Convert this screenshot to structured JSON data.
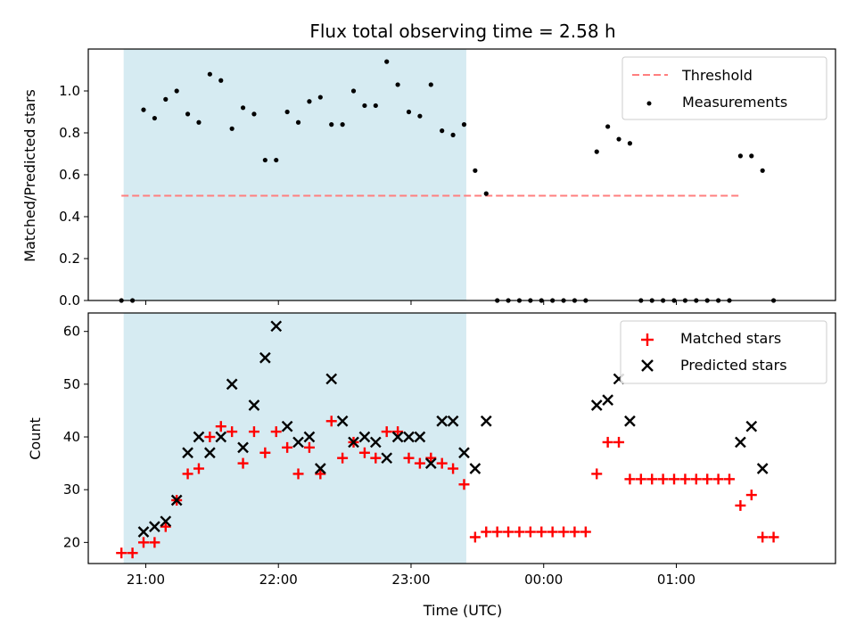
{
  "figure": {
    "title": "Flux total observing time = 2.58 h"
  },
  "chart_data": [
    {
      "type": "scatter",
      "ylabel": "Matched/Predicted stars",
      "xlabel": "",
      "xlim": [
        "20:34",
        "02:12"
      ],
      "ylim": [
        0,
        1.2
      ],
      "yticks": [
        0.0,
        0.2,
        0.4,
        0.6,
        0.8,
        1.0
      ],
      "ytick_labels": [
        "0.0",
        "0.2",
        "0.4",
        "0.6",
        "0.8",
        "1.0"
      ],
      "xticks": [
        "21:00",
        "22:00",
        "23:00",
        "00:00",
        "01:00"
      ],
      "xtick_labels_shown": false,
      "shaded_interval": {
        "start": "20:50",
        "end": "23:25",
        "color": "#add8e6"
      },
      "threshold": {
        "name": "Threshold",
        "value": 0.5,
        "x_start": "20:49",
        "x_end": "01:29",
        "color": "#ff7f7f",
        "style": "dashed"
      },
      "series": [
        {
          "name": "Measurements",
          "color": "#000000",
          "marker": "dot",
          "points": [
            [
              "20:49",
              0
            ],
            [
              "20:54",
              0
            ],
            [
              "20:59",
              0.91
            ],
            [
              "21:04",
              0.87
            ],
            [
              "21:09",
              0.96
            ],
            [
              "21:14",
              1.0
            ],
            [
              "21:19",
              0.89
            ],
            [
              "21:24",
              0.85
            ],
            [
              "21:29",
              1.08
            ],
            [
              "21:34",
              1.05
            ],
            [
              "21:39",
              0.82
            ],
            [
              "21:44",
              0.92
            ],
            [
              "21:49",
              0.89
            ],
            [
              "21:54",
              0.67
            ],
            [
              "21:59",
              0.67
            ],
            [
              "22:04",
              0.9
            ],
            [
              "22:09",
              0.85
            ],
            [
              "22:14",
              0.95
            ],
            [
              "22:19",
              0.97
            ],
            [
              "22:24",
              0.84
            ],
            [
              "22:29",
              0.84
            ],
            [
              "22:34",
              1.0
            ],
            [
              "22:39",
              0.93
            ],
            [
              "22:44",
              0.93
            ],
            [
              "22:49",
              1.14
            ],
            [
              "22:54",
              1.03
            ],
            [
              "22:59",
              0.9
            ],
            [
              "23:04",
              0.88
            ],
            [
              "23:09",
              1.03
            ],
            [
              "23:14",
              0.81
            ],
            [
              "23:19",
              0.79
            ],
            [
              "23:24",
              0.84
            ],
            [
              "23:29",
              0.62
            ],
            [
              "23:34",
              0.51
            ],
            [
              "23:39",
              0
            ],
            [
              "23:44",
              0
            ],
            [
              "23:49",
              0
            ],
            [
              "23:54",
              0
            ],
            [
              "23:59",
              0
            ],
            [
              "00:04",
              0
            ],
            [
              "00:09",
              0
            ],
            [
              "00:14",
              0
            ],
            [
              "00:19",
              0
            ],
            [
              "00:24",
              0.71
            ],
            [
              "00:29",
              0.83
            ],
            [
              "00:34",
              0.77
            ],
            [
              "00:39",
              0.75
            ],
            [
              "00:44",
              0
            ],
            [
              "00:49",
              0
            ],
            [
              "00:54",
              0
            ],
            [
              "00:59",
              0
            ],
            [
              "01:04",
              0
            ],
            [
              "01:09",
              0
            ],
            [
              "01:14",
              0
            ],
            [
              "01:19",
              0
            ],
            [
              "01:24",
              0
            ],
            [
              "01:29",
              0.69
            ],
            [
              "01:34",
              0.69
            ],
            [
              "01:39",
              0.62
            ],
            [
              "01:44",
              0
            ]
          ]
        }
      ],
      "legend": {
        "placement": "top-right",
        "entries": [
          "Threshold",
          "Measurements"
        ]
      }
    },
    {
      "type": "scatter",
      "ylabel": "Count",
      "xlabel": "Time (UTC)",
      "xlim": [
        "20:34",
        "02:12"
      ],
      "ylim": [
        16,
        63.5
      ],
      "yticks": [
        20,
        30,
        40,
        50,
        60
      ],
      "ytick_labels": [
        "20",
        "30",
        "40",
        "50",
        "60"
      ],
      "xticks": [
        "21:00",
        "22:00",
        "23:00",
        "00:00",
        "01:00"
      ],
      "xtick_labels": [
        "21:00",
        "22:00",
        "23:00",
        "00:00",
        "01:00"
      ],
      "shaded_interval": {
        "start": "20:50",
        "end": "23:25",
        "color": "#add8e6"
      },
      "series": [
        {
          "name": "Matched stars",
          "color": "#ff0000",
          "marker": "plus",
          "points": [
            [
              "20:49",
              18
            ],
            [
              "20:54",
              18
            ],
            [
              "20:59",
              20
            ],
            [
              "21:04",
              20
            ],
            [
              "21:09",
              23
            ],
            [
              "21:14",
              28
            ],
            [
              "21:19",
              33
            ],
            [
              "21:24",
              34
            ],
            [
              "21:29",
              40
            ],
            [
              "21:34",
              42
            ],
            [
              "21:39",
              41
            ],
            [
              "21:44",
              35
            ],
            [
              "21:49",
              41
            ],
            [
              "21:54",
              37
            ],
            [
              "21:59",
              41
            ],
            [
              "22:04",
              38
            ],
            [
              "22:09",
              33
            ],
            [
              "22:14",
              38
            ],
            [
              "22:19",
              33
            ],
            [
              "22:24",
              43
            ],
            [
              "22:29",
              36
            ],
            [
              "22:34",
              39
            ],
            [
              "22:39",
              37
            ],
            [
              "22:44",
              36
            ],
            [
              "22:49",
              41
            ],
            [
              "22:54",
              41
            ],
            [
              "22:59",
              36
            ],
            [
              "23:04",
              35
            ],
            [
              "23:09",
              36
            ],
            [
              "23:14",
              35
            ],
            [
              "23:19",
              34
            ],
            [
              "23:24",
              31
            ],
            [
              "23:29",
              21
            ],
            [
              "23:34",
              22
            ],
            [
              "23:39",
              22
            ],
            [
              "23:44",
              22
            ],
            [
              "23:49",
              22
            ],
            [
              "23:54",
              22
            ],
            [
              "23:59",
              22
            ],
            [
              "00:04",
              22
            ],
            [
              "00:09",
              22
            ],
            [
              "00:14",
              22
            ],
            [
              "00:19",
              22
            ],
            [
              "00:24",
              33
            ],
            [
              "00:29",
              39
            ],
            [
              "00:34",
              39
            ],
            [
              "00:39",
              32
            ],
            [
              "00:44",
              32
            ],
            [
              "00:49",
              32
            ],
            [
              "00:54",
              32
            ],
            [
              "00:59",
              32
            ],
            [
              "01:04",
              32
            ],
            [
              "01:09",
              32
            ],
            [
              "01:14",
              32
            ],
            [
              "01:19",
              32
            ],
            [
              "01:24",
              32
            ],
            [
              "01:29",
              27
            ],
            [
              "01:34",
              29
            ],
            [
              "01:39",
              21
            ],
            [
              "01:44",
              21
            ]
          ]
        },
        {
          "name": "Predicted stars",
          "color": "#000000",
          "marker": "x",
          "points": [
            [
              "20:59",
              22
            ],
            [
              "21:04",
              23
            ],
            [
              "21:09",
              24
            ],
            [
              "21:14",
              28
            ],
            [
              "21:19",
              37
            ],
            [
              "21:24",
              40
            ],
            [
              "21:29",
              37
            ],
            [
              "21:34",
              40
            ],
            [
              "21:39",
              50
            ],
            [
              "21:44",
              38
            ],
            [
              "21:49",
              46
            ],
            [
              "21:54",
              55
            ],
            [
              "21:59",
              61
            ],
            [
              "22:04",
              42
            ],
            [
              "22:09",
              39
            ],
            [
              "22:14",
              40
            ],
            [
              "22:19",
              34
            ],
            [
              "22:24",
              51
            ],
            [
              "22:29",
              43
            ],
            [
              "22:34",
              39
            ],
            [
              "22:39",
              40
            ],
            [
              "22:44",
              39
            ],
            [
              "22:49",
              36
            ],
            [
              "22:54",
              40
            ],
            [
              "22:59",
              40
            ],
            [
              "23:04",
              40
            ],
            [
              "23:09",
              35
            ],
            [
              "23:14",
              43
            ],
            [
              "23:19",
              43
            ],
            [
              "23:24",
              37
            ],
            [
              "23:29",
              34
            ],
            [
              "23:34",
              43
            ],
            [
              "00:24",
              46
            ],
            [
              "00:29",
              47
            ],
            [
              "00:34",
              51
            ],
            [
              "00:39",
              43
            ],
            [
              "01:29",
              39
            ],
            [
              "01:34",
              42
            ],
            [
              "01:39",
              34
            ]
          ]
        }
      ],
      "legend": {
        "placement": "top-right",
        "entries": [
          "Matched stars",
          "Predicted stars"
        ]
      }
    }
  ]
}
